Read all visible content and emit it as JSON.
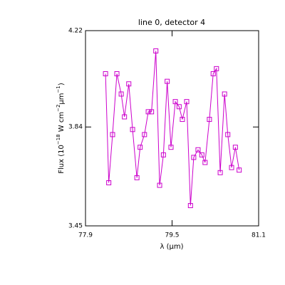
{
  "chart_data": {
    "type": "line",
    "title": "line 0, detector 4",
    "xlabel": "λ (μm)",
    "ylabel_parts": [
      "Flux (10",
      "−18",
      " W cm",
      "−2",
      "μm",
      "−1",
      ")"
    ],
    "x": [
      78.27,
      78.33,
      78.4,
      78.48,
      78.56,
      78.62,
      78.7,
      78.77,
      78.85,
      78.91,
      78.99,
      79.06,
      79.12,
      79.2,
      79.27,
      79.34,
      79.41,
      79.48,
      79.56,
      79.63,
      79.69,
      79.77,
      79.84,
      79.9,
      79.98,
      80.05,
      80.11,
      80.19,
      80.26,
      80.32,
      80.39,
      80.47,
      80.53,
      80.6,
      80.67,
      80.74
    ],
    "values": [
      4.05,
      3.62,
      3.81,
      4.05,
      3.97,
      3.88,
      4.01,
      3.83,
      3.64,
      3.76,
      3.81,
      3.9,
      3.9,
      4.14,
      3.61,
      3.73,
      4.02,
      3.76,
      3.94,
      3.92,
      3.87,
      3.94,
      3.53,
      3.72,
      3.75,
      3.73,
      3.7,
      3.87,
      4.05,
      4.07,
      3.66,
      3.97,
      3.81,
      3.68,
      3.76,
      3.67
    ],
    "color": "#cc00cc",
    "xlim": [
      77.9,
      81.1
    ],
    "xticks": [
      77.9,
      79.5,
      81.1
    ],
    "ylim": [
      3.45,
      4.22
    ],
    "yticks": [
      3.45,
      3.84,
      4.22
    ]
  }
}
